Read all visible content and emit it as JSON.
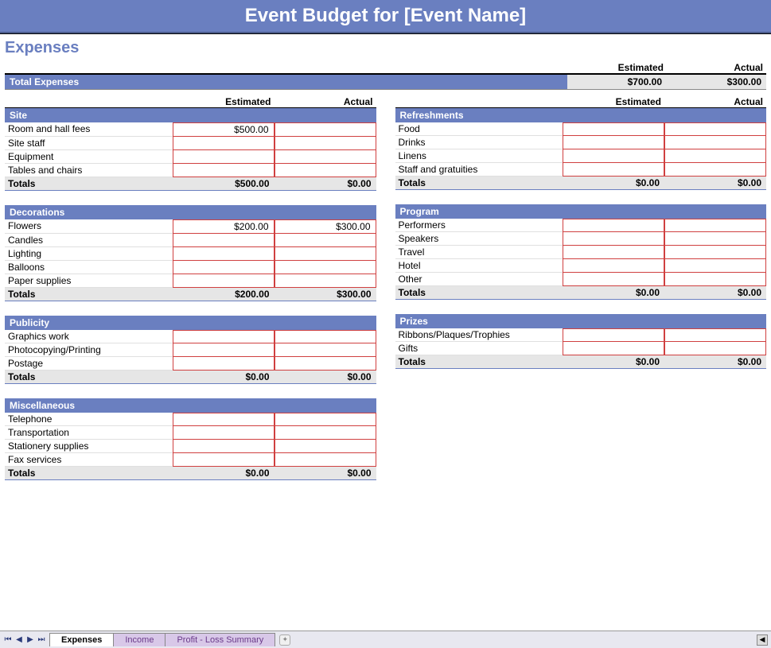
{
  "colors": {
    "header_bg": "#6a7fc0",
    "header_text": "#ffffff",
    "totals_bg": "#e6e6e6",
    "input_border": "#d04040",
    "page_bg": "#ffffff",
    "tab_inactive_bg": "#d8c8e8",
    "tab_inactive_text": "#6a3a8a"
  },
  "title": "Event Budget for [Event Name]",
  "heading": "Expenses",
  "labels": {
    "estimated": "Estimated",
    "actual": "Actual",
    "total_expenses": "Total Expenses",
    "totals": "Totals"
  },
  "total_expenses": {
    "estimated": "$700.00",
    "actual": "$300.00"
  },
  "left_sections": [
    {
      "title": "Site",
      "items": [
        {
          "label": "Room and hall fees",
          "estimated": "$500.00",
          "actual": ""
        },
        {
          "label": "Site staff",
          "estimated": "",
          "actual": ""
        },
        {
          "label": "Equipment",
          "estimated": "",
          "actual": ""
        },
        {
          "label": "Tables and chairs",
          "estimated": "",
          "actual": ""
        }
      ],
      "totals": {
        "estimated": "$500.00",
        "actual": "$0.00"
      }
    },
    {
      "title": "Decorations",
      "items": [
        {
          "label": "Flowers",
          "estimated": "$200.00",
          "actual": "$300.00"
        },
        {
          "label": "Candles",
          "estimated": "",
          "actual": ""
        },
        {
          "label": "Lighting",
          "estimated": "",
          "actual": ""
        },
        {
          "label": "Balloons",
          "estimated": "",
          "actual": ""
        },
        {
          "label": "Paper supplies",
          "estimated": "",
          "actual": ""
        }
      ],
      "totals": {
        "estimated": "$200.00",
        "actual": "$300.00"
      }
    },
    {
      "title": "Publicity",
      "items": [
        {
          "label": "Graphics work",
          "estimated": "",
          "actual": ""
        },
        {
          "label": "Photocopying/Printing",
          "estimated": "",
          "actual": ""
        },
        {
          "label": "Postage",
          "estimated": "",
          "actual": ""
        }
      ],
      "totals": {
        "estimated": "$0.00",
        "actual": "$0.00"
      }
    },
    {
      "title": "Miscellaneous",
      "items": [
        {
          "label": "Telephone",
          "estimated": "",
          "actual": ""
        },
        {
          "label": "Transportation",
          "estimated": "",
          "actual": ""
        },
        {
          "label": "Stationery supplies",
          "estimated": "",
          "actual": ""
        },
        {
          "label": "Fax services",
          "estimated": "",
          "actual": ""
        }
      ],
      "totals": {
        "estimated": "$0.00",
        "actual": "$0.00"
      }
    }
  ],
  "right_sections": [
    {
      "title": "Refreshments",
      "items": [
        {
          "label": "Food",
          "estimated": "",
          "actual": ""
        },
        {
          "label": "Drinks",
          "estimated": "",
          "actual": ""
        },
        {
          "label": "Linens",
          "estimated": "",
          "actual": ""
        },
        {
          "label": "Staff and gratuities",
          "estimated": "",
          "actual": ""
        }
      ],
      "totals": {
        "estimated": "$0.00",
        "actual": "$0.00"
      }
    },
    {
      "title": "Program",
      "items": [
        {
          "label": "Performers",
          "estimated": "",
          "actual": ""
        },
        {
          "label": "Speakers",
          "estimated": "",
          "actual": ""
        },
        {
          "label": "Travel",
          "estimated": "",
          "actual": ""
        },
        {
          "label": "Hotel",
          "estimated": "",
          "actual": ""
        },
        {
          "label": "Other",
          "estimated": "",
          "actual": ""
        }
      ],
      "totals": {
        "estimated": "$0.00",
        "actual": "$0.00"
      }
    },
    {
      "title": "Prizes",
      "items": [
        {
          "label": "Ribbons/Plaques/Trophies",
          "estimated": "",
          "actual": ""
        },
        {
          "label": "Gifts",
          "estimated": "",
          "actual": ""
        }
      ],
      "totals": {
        "estimated": "$0.00",
        "actual": "$0.00"
      }
    }
  ],
  "tabs": [
    {
      "label": "Expenses",
      "active": true
    },
    {
      "label": "Income",
      "active": false
    },
    {
      "label": "Profit - Loss Summary",
      "active": false
    }
  ]
}
